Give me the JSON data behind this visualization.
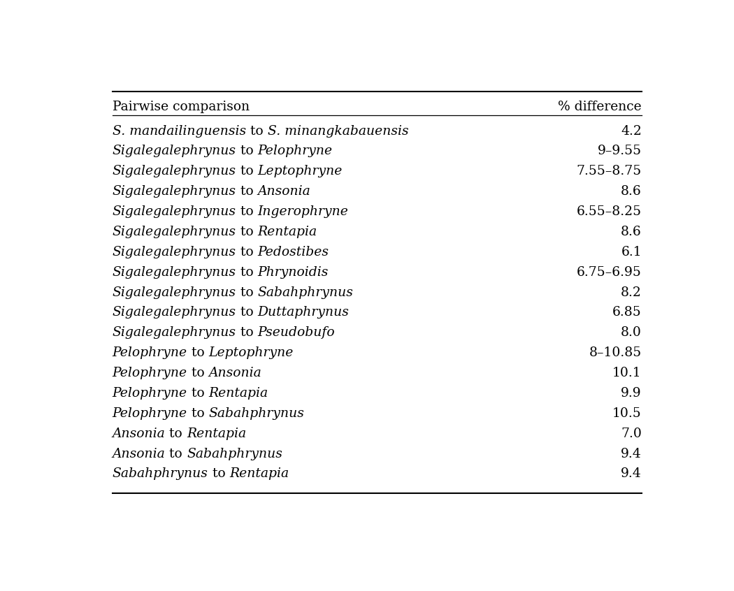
{
  "header_left": "Pairwise comparison",
  "header_right": "% difference",
  "rows": [
    {
      "right": "4.2",
      "left_parts": [
        {
          "text": "S. mandailinguensis",
          "italic": true
        },
        {
          "text": " to ",
          "italic": false
        },
        {
          "text": "S. minangkabauensis",
          "italic": true
        }
      ]
    },
    {
      "right": "9–9.55",
      "left_parts": [
        {
          "text": "Sigalegalephrynus",
          "italic": true
        },
        {
          "text": " to ",
          "italic": false
        },
        {
          "text": "Pelophryne",
          "italic": true
        }
      ]
    },
    {
      "right": "7.55–8.75",
      "left_parts": [
        {
          "text": "Sigalegalephrynus",
          "italic": true
        },
        {
          "text": " to ",
          "italic": false
        },
        {
          "text": "Leptophryne",
          "italic": true
        }
      ]
    },
    {
      "right": "8.6",
      "left_parts": [
        {
          "text": "Sigalegalephrynus",
          "italic": true
        },
        {
          "text": " to ",
          "italic": false
        },
        {
          "text": "Ansonia",
          "italic": true
        }
      ]
    },
    {
      "right": "6.55–8.25",
      "left_parts": [
        {
          "text": "Sigalegalephrynus",
          "italic": true
        },
        {
          "text": " to ",
          "italic": false
        },
        {
          "text": "Ingerophryne",
          "italic": true
        }
      ]
    },
    {
      "right": "8.6",
      "left_parts": [
        {
          "text": "Sigalegalephrynus",
          "italic": true
        },
        {
          "text": " to ",
          "italic": false
        },
        {
          "text": "Rentapia",
          "italic": true
        }
      ]
    },
    {
      "right": "6.1",
      "left_parts": [
        {
          "text": "Sigalegalephrynus",
          "italic": true
        },
        {
          "text": " to ",
          "italic": false
        },
        {
          "text": "Pedostibes",
          "italic": true
        }
      ]
    },
    {
      "right": "6.75–6.95",
      "left_parts": [
        {
          "text": "Sigalegalephrynus",
          "italic": true
        },
        {
          "text": " to ",
          "italic": false
        },
        {
          "text": "Phrynoidis",
          "italic": true
        }
      ]
    },
    {
      "right": "8.2",
      "left_parts": [
        {
          "text": "Sigalegalephrynus",
          "italic": true
        },
        {
          "text": " to ",
          "italic": false
        },
        {
          "text": "Sabahphrynus",
          "italic": true
        }
      ]
    },
    {
      "right": "6.85",
      "left_parts": [
        {
          "text": "Sigalegalephrynus",
          "italic": true
        },
        {
          "text": " to ",
          "italic": false
        },
        {
          "text": "Duttaphrynus",
          "italic": true
        }
      ]
    },
    {
      "right": "8.0",
      "left_parts": [
        {
          "text": "Sigalegalephrynus",
          "italic": true
        },
        {
          "text": " to ",
          "italic": false
        },
        {
          "text": "Pseudobufo",
          "italic": true
        }
      ]
    },
    {
      "right": "8–10.85",
      "left_parts": [
        {
          "text": "Pelophryne",
          "italic": true
        },
        {
          "text": " to ",
          "italic": false
        },
        {
          "text": "Leptophryne",
          "italic": true
        }
      ]
    },
    {
      "right": "10.1",
      "left_parts": [
        {
          "text": "Pelophryne",
          "italic": true
        },
        {
          "text": " to ",
          "italic": false
        },
        {
          "text": "Ansonia",
          "italic": true
        }
      ]
    },
    {
      "right": "9.9",
      "left_parts": [
        {
          "text": "Pelophryne",
          "italic": true
        },
        {
          "text": " to ",
          "italic": false
        },
        {
          "text": "Rentapia",
          "italic": true
        }
      ]
    },
    {
      "right": "10.5",
      "left_parts": [
        {
          "text": "Pelophryne",
          "italic": true
        },
        {
          "text": " to ",
          "italic": false
        },
        {
          "text": "Sabahphrynus",
          "italic": true
        }
      ]
    },
    {
      "right": "7.0",
      "left_parts": [
        {
          "text": "Ansonia",
          "italic": true
        },
        {
          "text": " to ",
          "italic": false
        },
        {
          "text": "Rentapia",
          "italic": true
        }
      ]
    },
    {
      "right": "9.4",
      "left_parts": [
        {
          "text": "Ansonia",
          "italic": true
        },
        {
          "text": " to ",
          "italic": false
        },
        {
          "text": "Sabahphrynus",
          "italic": true
        }
      ]
    },
    {
      "right": "9.4",
      "left_parts": [
        {
          "text": "Sabahphrynus",
          "italic": true
        },
        {
          "text": " to ",
          "italic": false
        },
        {
          "text": "Rentapia",
          "italic": true
        }
      ]
    }
  ],
  "bg_color": "#ffffff",
  "text_color": "#000000",
  "font_size": 13.5,
  "header_font_size": 13.5,
  "line_color": "#000000",
  "fig_width": 10.5,
  "fig_height": 8.46
}
